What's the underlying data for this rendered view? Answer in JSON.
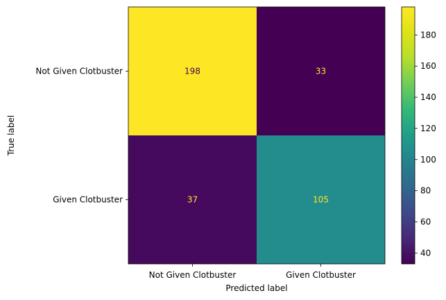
{
  "chart_data": {
    "type": "heatmap",
    "title": "",
    "xlabel": "Predicted label",
    "ylabel": "True label",
    "x_categories": [
      "Not Given Clotbuster",
      "Given Clotbuster"
    ],
    "y_categories": [
      "Not Given Clotbuster",
      "Given Clotbuster"
    ],
    "matrix": [
      [
        198,
        33
      ],
      [
        37,
        105
      ]
    ],
    "colormap": "viridis",
    "colorbar": {
      "ticks": [
        40,
        60,
        80,
        100,
        120,
        140,
        160,
        180
      ],
      "vmin": 33,
      "vmax": 198
    },
    "text_colors": {
      "on_dark": "#fde725",
      "on_light": "#440154"
    },
    "grid": false
  }
}
